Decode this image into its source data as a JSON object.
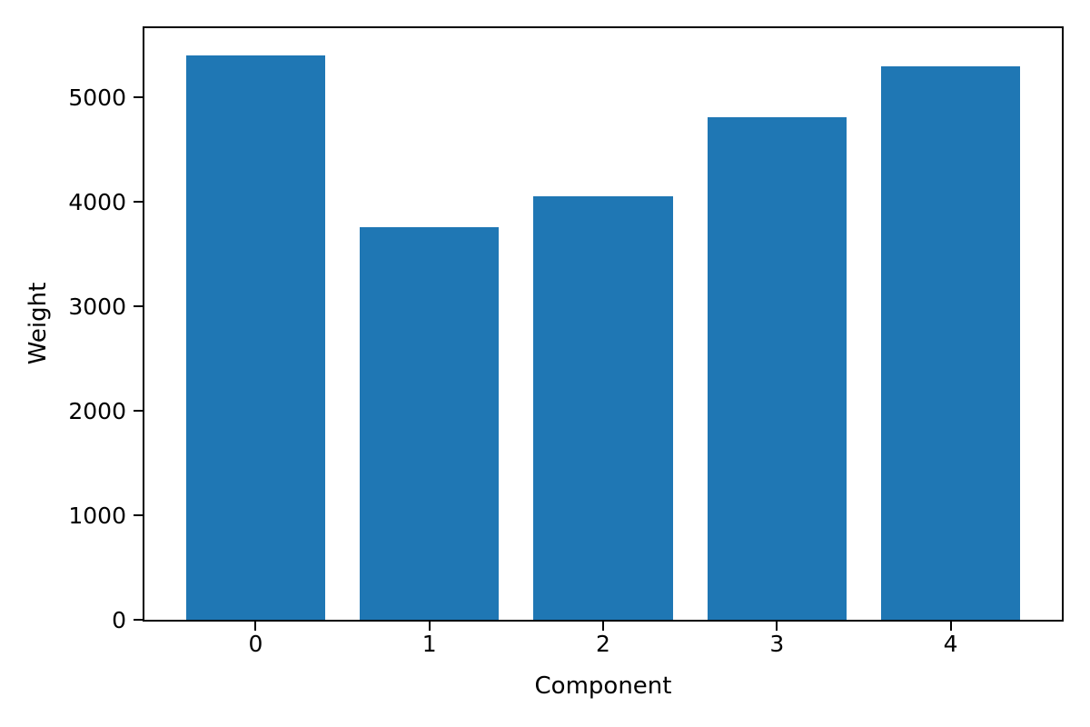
{
  "chart_data": {
    "type": "bar",
    "title": "",
    "xlabel": "Component",
    "ylabel": "Weight",
    "categories": [
      "0",
      "1",
      "2",
      "3",
      "4"
    ],
    "values": [
      5400,
      3760,
      4050,
      4810,
      5300
    ],
    "yticks": [
      0,
      1000,
      2000,
      3000,
      4000,
      5000
    ],
    "ylim": [
      0,
      5663
    ],
    "xlim": [
      -0.64,
      4.64
    ],
    "bar_width_units": 0.8,
    "bar_color": "#1f77b4",
    "grid": false,
    "legend": "none",
    "background_color": "#ffffff",
    "axis_color": "#000000"
  }
}
